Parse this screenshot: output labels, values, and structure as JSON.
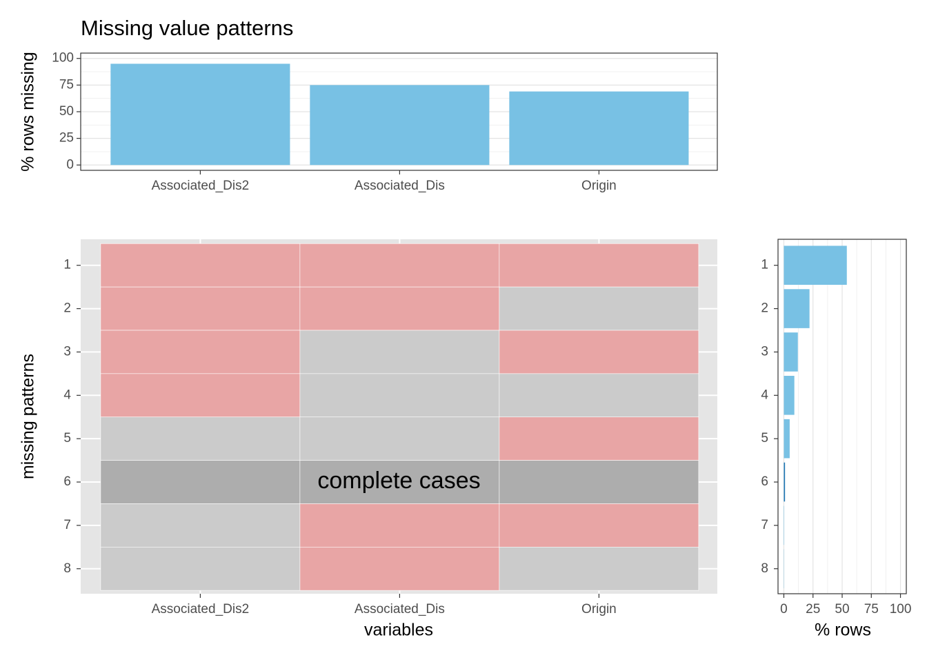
{
  "chart_data": [
    {
      "type": "bar",
      "title": "Missing value patterns",
      "ylabel": "% rows missing",
      "categories": [
        "Associated_Dis2",
        "Associated_Dis",
        "Origin"
      ],
      "values": [
        95,
        75,
        69
      ],
      "color": "#78c1e4",
      "ylim": [
        -5,
        105
      ],
      "yticks": [
        0,
        25,
        50,
        75,
        100
      ],
      "grid": true
    },
    {
      "type": "tile",
      "xlabel": "variables",
      "ylabel": "missing patterns",
      "x_categories": [
        "Associated_Dis2",
        "Associated_Dis",
        "Origin"
      ],
      "y_categories": [
        "1",
        "2",
        "3",
        "4",
        "5",
        "6",
        "7",
        "8"
      ],
      "values": [
        [
          1,
          1,
          1
        ],
        [
          1,
          1,
          0
        ],
        [
          1,
          0,
          1
        ],
        [
          1,
          0,
          0
        ],
        [
          0,
          0,
          1
        ],
        [
          0,
          0,
          0
        ],
        [
          0,
          1,
          1
        ],
        [
          0,
          1,
          0
        ]
      ],
      "missing_color": "#e8a5a5",
      "observed_color": "#cbcbcb",
      "complete_color": "#adadad",
      "annotation": "complete cases"
    },
    {
      "type": "barh",
      "xlabel": "% rows",
      "categories": [
        "1",
        "2",
        "3",
        "4",
        "5",
        "6",
        "7",
        "8"
      ],
      "values": [
        54,
        22,
        12,
        9,
        5,
        1,
        0.3,
        0.2
      ],
      "colors": [
        "#78c1e4",
        "#78c1e4",
        "#78c1e4",
        "#78c1e4",
        "#78c1e4",
        "#1f78b4",
        "#78c1e4",
        "#78c1e4"
      ],
      "xlim": [
        -5,
        105
      ],
      "xticks": [
        0,
        25,
        50,
        75,
        100
      ],
      "grid": true
    }
  ]
}
